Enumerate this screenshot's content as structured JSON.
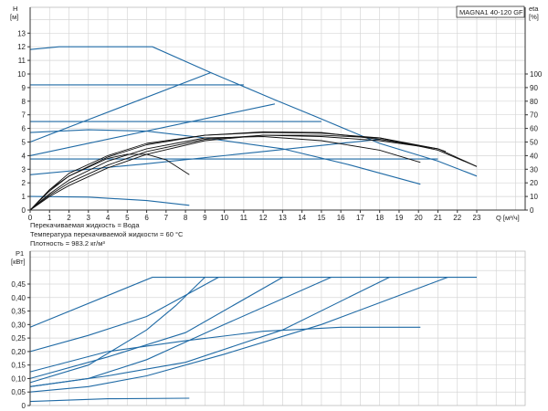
{
  "colors": {
    "blue": "#1f6aa5",
    "black": "#111111",
    "grid": "#d6d6d6"
  },
  "notes": [
    "Перекачиваемая жидкость = Вода",
    "Температура перекачиваемой жидкости = 60 °C",
    "Плотность = 983.2 кг/м³"
  ],
  "chart_data": [
    {
      "type": "line",
      "title": "MAGNA1 40-120 GF",
      "ylabel": "H",
      "yunit": "[м]",
      "y2label": "eta",
      "y2unit": "[%]",
      "xlabel": "Q [м³/ч]",
      "xlim": [
        0,
        25.3
      ],
      "ylim": [
        0,
        14.5
      ],
      "y2lim": [
        0,
        145
      ],
      "grid": true,
      "xticks": [
        0,
        1,
        2,
        3,
        4,
        5,
        6,
        7,
        8,
        9,
        10,
        11,
        12,
        13,
        14,
        15,
        16,
        17,
        18,
        19,
        20,
        21,
        22,
        23
      ],
      "yticks": [
        0,
        1,
        2,
        3,
        4,
        5,
        6,
        7,
        8,
        9,
        10,
        11,
        12,
        13
      ],
      "y2ticks": [
        0,
        10,
        20,
        30,
        40,
        50,
        60,
        70,
        80,
        90,
        100
      ],
      "head_curves": [
        [
          [
            0,
            11.8
          ],
          [
            1.5,
            12
          ],
          [
            6.3,
            12
          ],
          [
            9.3,
            10.1
          ],
          [
            12.6,
            8.1
          ],
          [
            15,
            6.7
          ],
          [
            18,
            4.9
          ],
          [
            21,
            3.6
          ],
          [
            23,
            2.5
          ]
        ],
        [
          [
            0,
            9.2
          ],
          [
            11,
            9.2
          ]
        ],
        [
          [
            0,
            5
          ],
          [
            9.3,
            10.1
          ]
        ],
        [
          [
            0,
            6.5
          ],
          [
            15,
            6.5
          ]
        ],
        [
          [
            0,
            4
          ],
          [
            12.6,
            7.8
          ]
        ],
        [
          [
            0,
            5.7
          ],
          [
            3,
            5.9
          ],
          [
            6,
            5.8
          ],
          [
            9,
            5.3
          ],
          [
            13,
            4.5
          ],
          [
            16.5,
            3.3
          ],
          [
            20.1,
            1.9
          ]
        ],
        [
          [
            0,
            3.75
          ],
          [
            21,
            3.75
          ]
        ],
        [
          [
            0,
            2.6
          ],
          [
            6,
            3.4
          ],
          [
            12,
            4.3
          ],
          [
            18,
            5.2
          ]
        ],
        [
          [
            0,
            1
          ],
          [
            3,
            0.95
          ],
          [
            6,
            0.7
          ],
          [
            8.2,
            0.35
          ]
        ]
      ],
      "eta_curves": [
        [
          [
            0,
            0
          ],
          [
            1,
            15
          ],
          [
            2,
            25
          ],
          [
            4,
            38
          ],
          [
            5,
            41
          ],
          [
            6,
            41
          ],
          [
            7,
            37
          ],
          [
            8.2,
            26
          ]
        ],
        [
          [
            0,
            0
          ],
          [
            1,
            15
          ],
          [
            2,
            27
          ],
          [
            4,
            40
          ],
          [
            6,
            49
          ],
          [
            9,
            55
          ],
          [
            12,
            57
          ],
          [
            15,
            56.5
          ],
          [
            18,
            53
          ],
          [
            21,
            44
          ],
          [
            23,
            32
          ]
        ],
        [
          [
            0,
            0
          ],
          [
            1,
            14
          ],
          [
            2,
            25
          ],
          [
            4,
            39
          ],
          [
            6,
            48
          ],
          [
            9,
            55
          ],
          [
            12,
            57.5
          ],
          [
            15,
            57
          ],
          [
            18,
            52
          ],
          [
            21,
            45
          ],
          [
            23,
            32
          ]
        ],
        [
          [
            0,
            0
          ],
          [
            1,
            12
          ],
          [
            2,
            22
          ],
          [
            4,
            36
          ],
          [
            6,
            45
          ],
          [
            9,
            53
          ],
          [
            12,
            54
          ],
          [
            15,
            51
          ],
          [
            18,
            44
          ],
          [
            20.1,
            35
          ]
        ],
        [
          [
            0,
            0
          ],
          [
            1,
            11
          ],
          [
            2,
            20
          ],
          [
            4,
            33
          ],
          [
            6,
            43
          ],
          [
            9,
            52
          ],
          [
            12,
            55
          ],
          [
            15,
            54
          ],
          [
            18,
            51
          ],
          [
            21,
            45
          ],
          [
            21.4,
            43
          ]
        ],
        [
          [
            0,
            0
          ],
          [
            1,
            10
          ],
          [
            2,
            18
          ],
          [
            4,
            31
          ],
          [
            6,
            41
          ],
          [
            9,
            51
          ],
          [
            12,
            55
          ],
          [
            15,
            55
          ],
          [
            18,
            53
          ],
          [
            21,
            45
          ]
        ]
      ]
    },
    {
      "type": "line",
      "ylabel": "P1",
      "yunit": "[кВт]",
      "xlim": [
        0,
        25.3
      ],
      "ylim": [
        0,
        0.55
      ],
      "grid": true,
      "yticks": [
        "0",
        "0,05",
        "0,10",
        "0,15",
        "0,20",
        "0,25",
        "0,30",
        "0,35",
        "0,40",
        "0,45"
      ],
      "ytick_values": [
        0,
        0.05,
        0.1,
        0.15,
        0.2,
        0.25,
        0.3,
        0.35,
        0.4,
        0.45
      ],
      "power_curves": [
        [
          [
            0,
            0.29
          ],
          [
            6.3,
            0.475
          ],
          [
            23,
            0.475
          ]
        ],
        [
          [
            0,
            0.2
          ],
          [
            3,
            0.26
          ],
          [
            6,
            0.33
          ],
          [
            9.7,
            0.475
          ]
        ],
        [
          [
            0,
            0.085
          ],
          [
            3,
            0.15
          ],
          [
            6,
            0.28
          ],
          [
            7.5,
            0.37
          ],
          [
            9,
            0.475
          ]
        ],
        [
          [
            0,
            0.125
          ],
          [
            4,
            0.2
          ],
          [
            8,
            0.24
          ],
          [
            12,
            0.275
          ],
          [
            16,
            0.29
          ],
          [
            20.1,
            0.29
          ]
        ],
        [
          [
            0,
            0.1
          ],
          [
            4,
            0.18
          ],
          [
            8,
            0.27
          ],
          [
            13,
            0.475
          ]
        ],
        [
          [
            0,
            0.07
          ],
          [
            3,
            0.1
          ],
          [
            6,
            0.17
          ],
          [
            10,
            0.3
          ],
          [
            15.5,
            0.475
          ]
        ],
        [
          [
            0,
            0.07
          ],
          [
            4,
            0.11
          ],
          [
            8,
            0.16
          ],
          [
            13,
            0.28
          ],
          [
            18.5,
            0.475
          ]
        ],
        [
          [
            0,
            0.05
          ],
          [
            3,
            0.07
          ],
          [
            6,
            0.11
          ],
          [
            10,
            0.19
          ],
          [
            15,
            0.3
          ],
          [
            21.5,
            0.475
          ]
        ],
        [
          [
            0,
            0.015
          ],
          [
            4,
            0.025
          ],
          [
            8.2,
            0.027
          ]
        ]
      ]
    }
  ]
}
